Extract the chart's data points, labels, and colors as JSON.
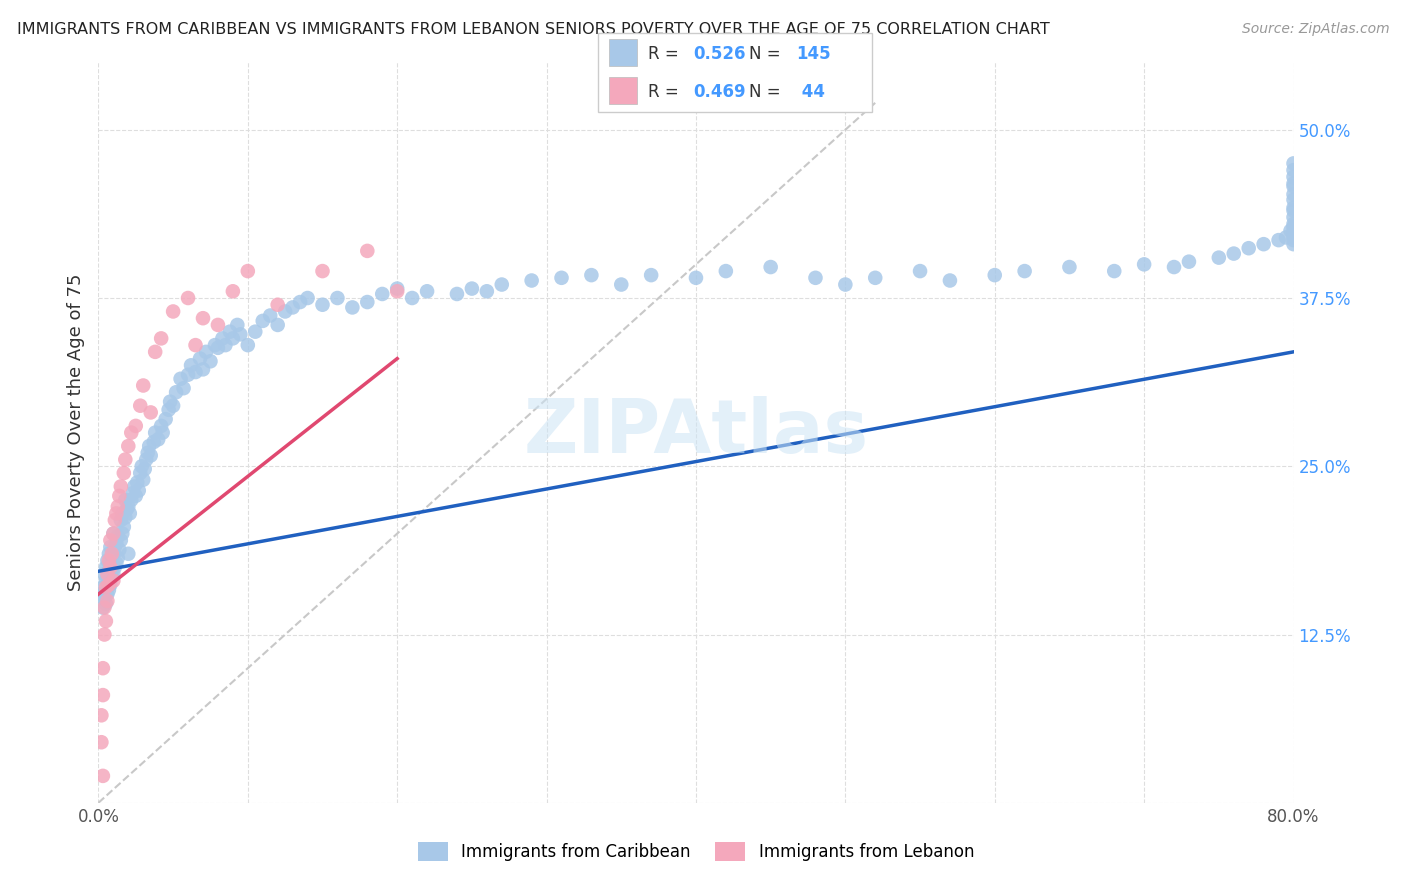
{
  "title": "IMMIGRANTS FROM CARIBBEAN VS IMMIGRANTS FROM LEBANON SENIORS POVERTY OVER THE AGE OF 75 CORRELATION CHART",
  "source": "Source: ZipAtlas.com",
  "ylabel": "Seniors Poverty Over the Age of 75",
  "xlim": [
    0.0,
    0.8
  ],
  "ylim": [
    0.0,
    0.55
  ],
  "x_ticks": [
    0.0,
    0.1,
    0.2,
    0.3,
    0.4,
    0.5,
    0.6,
    0.7,
    0.8
  ],
  "y_ticks": [
    0.0,
    0.125,
    0.25,
    0.375,
    0.5
  ],
  "y_tick_labels": [
    "",
    "12.5%",
    "25.0%",
    "37.5%",
    "50.0%"
  ],
  "caribbean_R": 0.526,
  "caribbean_N": 145,
  "lebanon_R": 0.469,
  "lebanon_N": 44,
  "caribbean_color": "#a8c8e8",
  "lebanon_color": "#f4a8bc",
  "caribbean_line_color": "#2060c0",
  "lebanon_line_color": "#e04870",
  "diagonal_color": "#c8c8c8",
  "background_color": "#ffffff",
  "grid_color": "#dedede",
  "label_color": "#4499ff",
  "caribbean_x": [
    0.002,
    0.003,
    0.003,
    0.004,
    0.004,
    0.005,
    0.005,
    0.005,
    0.006,
    0.006,
    0.006,
    0.007,
    0.007,
    0.007,
    0.008,
    0.008,
    0.008,
    0.009,
    0.009,
    0.01,
    0.01,
    0.01,
    0.011,
    0.011,
    0.012,
    0.012,
    0.013,
    0.013,
    0.014,
    0.015,
    0.015,
    0.016,
    0.016,
    0.017,
    0.018,
    0.018,
    0.019,
    0.02,
    0.02,
    0.021,
    0.022,
    0.023,
    0.024,
    0.025,
    0.026,
    0.027,
    0.028,
    0.029,
    0.03,
    0.031,
    0.032,
    0.033,
    0.034,
    0.035,
    0.037,
    0.038,
    0.04,
    0.042,
    0.043,
    0.045,
    0.047,
    0.048,
    0.05,
    0.052,
    0.055,
    0.057,
    0.06,
    0.062,
    0.065,
    0.068,
    0.07,
    0.072,
    0.075,
    0.078,
    0.08,
    0.083,
    0.085,
    0.088,
    0.09,
    0.093,
    0.095,
    0.1,
    0.105,
    0.11,
    0.115,
    0.12,
    0.125,
    0.13,
    0.135,
    0.14,
    0.15,
    0.16,
    0.17,
    0.18,
    0.19,
    0.2,
    0.21,
    0.22,
    0.24,
    0.25,
    0.26,
    0.27,
    0.29,
    0.31,
    0.33,
    0.35,
    0.37,
    0.4,
    0.42,
    0.45,
    0.48,
    0.5,
    0.52,
    0.55,
    0.57,
    0.6,
    0.62,
    0.65,
    0.68,
    0.7,
    0.72,
    0.73,
    0.75,
    0.76,
    0.77,
    0.78,
    0.79,
    0.795,
    0.798,
    0.8,
    0.8,
    0.8,
    0.8,
    0.8,
    0.8,
    0.8,
    0.8,
    0.8,
    0.8,
    0.8,
    0.8,
    0.8,
    0.8,
    0.8,
    0.8
  ],
  "caribbean_y": [
    0.155,
    0.16,
    0.145,
    0.17,
    0.152,
    0.148,
    0.165,
    0.175,
    0.155,
    0.168,
    0.18,
    0.158,
    0.172,
    0.185,
    0.162,
    0.175,
    0.19,
    0.168,
    0.182,
    0.17,
    0.185,
    0.2,
    0.175,
    0.19,
    0.178,
    0.193,
    0.182,
    0.198,
    0.188,
    0.195,
    0.21,
    0.2,
    0.215,
    0.205,
    0.212,
    0.225,
    0.218,
    0.185,
    0.22,
    0.215,
    0.225,
    0.23,
    0.235,
    0.228,
    0.238,
    0.232,
    0.245,
    0.25,
    0.24,
    0.248,
    0.255,
    0.26,
    0.265,
    0.258,
    0.268,
    0.275,
    0.27,
    0.28,
    0.275,
    0.285,
    0.292,
    0.298,
    0.295,
    0.305,
    0.315,
    0.308,
    0.318,
    0.325,
    0.32,
    0.33,
    0.322,
    0.335,
    0.328,
    0.34,
    0.338,
    0.345,
    0.34,
    0.35,
    0.345,
    0.355,
    0.348,
    0.34,
    0.35,
    0.358,
    0.362,
    0.355,
    0.365,
    0.368,
    0.372,
    0.375,
    0.37,
    0.375,
    0.368,
    0.372,
    0.378,
    0.382,
    0.375,
    0.38,
    0.378,
    0.382,
    0.38,
    0.385,
    0.388,
    0.39,
    0.392,
    0.385,
    0.392,
    0.39,
    0.395,
    0.398,
    0.39,
    0.385,
    0.39,
    0.395,
    0.388,
    0.392,
    0.395,
    0.398,
    0.395,
    0.4,
    0.398,
    0.402,
    0.405,
    0.408,
    0.412,
    0.415,
    0.418,
    0.42,
    0.425,
    0.428,
    0.415,
    0.42,
    0.425,
    0.418,
    0.43,
    0.435,
    0.44,
    0.442,
    0.448,
    0.452,
    0.458,
    0.46,
    0.465,
    0.47,
    0.475
  ],
  "lebanon_x": [
    0.002,
    0.002,
    0.003,
    0.003,
    0.003,
    0.004,
    0.004,
    0.005,
    0.005,
    0.006,
    0.006,
    0.007,
    0.007,
    0.008,
    0.008,
    0.009,
    0.01,
    0.01,
    0.011,
    0.012,
    0.013,
    0.014,
    0.015,
    0.017,
    0.018,
    0.02,
    0.022,
    0.025,
    0.028,
    0.03,
    0.035,
    0.038,
    0.042,
    0.05,
    0.06,
    0.065,
    0.07,
    0.08,
    0.09,
    0.1,
    0.12,
    0.15,
    0.18,
    0.2
  ],
  "lebanon_y": [
    0.045,
    0.065,
    0.08,
    0.1,
    0.02,
    0.125,
    0.145,
    0.135,
    0.16,
    0.15,
    0.17,
    0.162,
    0.18,
    0.175,
    0.195,
    0.185,
    0.165,
    0.2,
    0.21,
    0.215,
    0.22,
    0.228,
    0.235,
    0.245,
    0.255,
    0.265,
    0.275,
    0.28,
    0.295,
    0.31,
    0.29,
    0.335,
    0.345,
    0.365,
    0.375,
    0.34,
    0.36,
    0.355,
    0.38,
    0.395,
    0.37,
    0.395,
    0.41,
    0.38
  ],
  "carib_line_x0": 0.0,
  "carib_line_y0": 0.172,
  "carib_line_x1": 0.8,
  "carib_line_y1": 0.335,
  "leb_line_x0": 0.0,
  "leb_line_y0": 0.155,
  "leb_line_x1": 0.2,
  "leb_line_y1": 0.33
}
